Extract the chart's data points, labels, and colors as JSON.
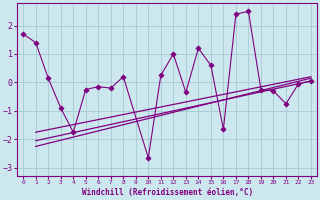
{
  "x": [
    0,
    1,
    2,
    3,
    4,
    5,
    6,
    7,
    8,
    9,
    10,
    11,
    12,
    13,
    14,
    15,
    16,
    17,
    18,
    19,
    20,
    21,
    22,
    23
  ],
  "y_data": [
    1.7,
    1.4,
    0.15,
    -0.9,
    -1.75,
    -0.25,
    -0.15,
    -0.2,
    0.2,
    null,
    -2.65,
    0.25,
    1.0,
    -0.35,
    1.2,
    0.6,
    -1.65,
    2.4,
    2.5,
    -0.25,
    -0.3,
    -0.75,
    -0.05,
    0.05
  ],
  "trend_lines": [
    {
      "x0": 1.0,
      "y0": -2.25,
      "x1": 23,
      "y1": 0.15
    },
    {
      "x0": 1.0,
      "y0": -2.05,
      "x1": 23,
      "y1": 0.05
    },
    {
      "x0": 1.0,
      "y0": -1.75,
      "x1": 23,
      "y1": 0.2
    }
  ],
  "color": "#800080",
  "bg_color": "#cce8ee",
  "grid_color": "#aacdd5",
  "xlabel": "Windchill (Refroidissement éolien,°C)",
  "xlim": [
    -0.5,
    23.5
  ],
  "ylim": [
    -3.3,
    2.8
  ],
  "yticks": [
    -3,
    -2,
    -1,
    0,
    1,
    2
  ],
  "xticks": [
    0,
    1,
    2,
    3,
    4,
    5,
    6,
    7,
    8,
    9,
    10,
    11,
    12,
    13,
    14,
    15,
    16,
    17,
    18,
    19,
    20,
    21,
    22,
    23
  ]
}
